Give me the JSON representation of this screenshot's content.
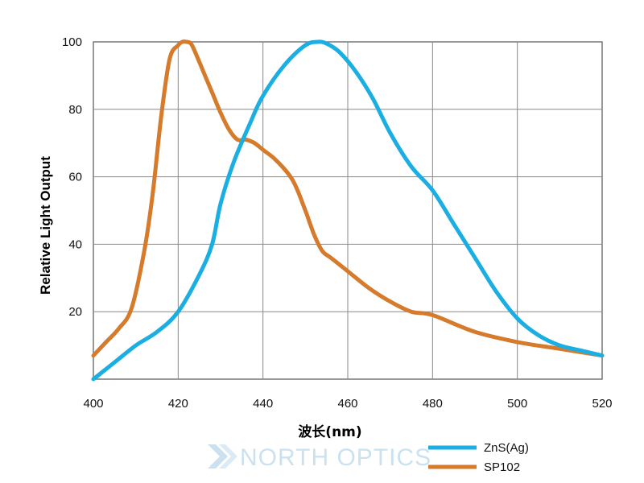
{
  "chart_data": {
    "type": "line",
    "xlabel": "波长(nm)",
    "ylabel": "Relative Light Output",
    "xlim": [
      400,
      520
    ],
    "ylim": [
      0,
      100
    ],
    "xticks": [
      400,
      420,
      440,
      460,
      480,
      500,
      520
    ],
    "yticks": [
      20,
      40,
      60,
      80,
      100
    ],
    "grid": true,
    "legend_position": "bottom-right",
    "series": [
      {
        "name": "ZnS(Ag)",
        "color": "#1aaee3",
        "x": [
          400,
          405,
          410,
          415,
          420,
          425,
          428,
          430,
          433,
          437,
          440,
          445,
          450,
          453,
          455,
          458,
          462,
          466,
          470,
          475,
          480,
          485,
          490,
          495,
          500,
          505,
          510,
          515,
          520
        ],
        "y": [
          0,
          5,
          10,
          14,
          20,
          31,
          40,
          52,
          64,
          76,
          84,
          93,
          99,
          100,
          99.5,
          97,
          91,
          83,
          73,
          63,
          56,
          46,
          36,
          26,
          18,
          13,
          10,
          8.5,
          7
        ]
      },
      {
        "name": "SP102",
        "color": "#d67a2c",
        "x": [
          400,
          403,
          406,
          409,
          412,
          414,
          416,
          418,
          420,
          421,
          422,
          423,
          424,
          426,
          428,
          430,
          432,
          434,
          436,
          438,
          440,
          443,
          447,
          450,
          452,
          454,
          456,
          460,
          465,
          470,
          475,
          480,
          490,
          500,
          510,
          520
        ],
        "y": [
          7,
          11,
          15,
          21,
          38,
          55,
          78,
          95,
          99,
          100,
          100,
          99.5,
          97,
          91,
          85,
          79,
          74,
          71,
          71,
          70,
          68,
          65,
          59,
          50,
          43,
          38,
          36,
          32,
          27,
          23,
          20,
          19,
          14,
          11,
          9,
          7
        ]
      }
    ]
  },
  "watermark": "NORTH OPTICS"
}
